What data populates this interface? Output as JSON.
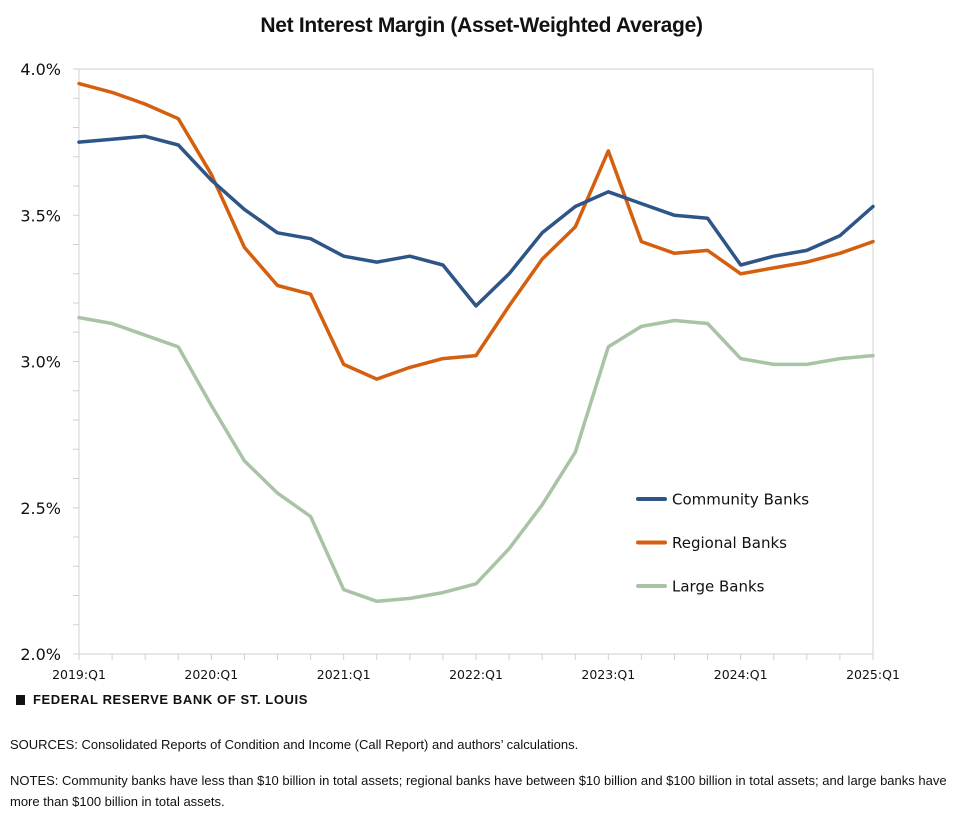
{
  "chart_data": {
    "type": "line",
    "title": "Net Interest Margin (Asset-Weighted Average)",
    "xlabel": "",
    "ylabel": "",
    "ylim": [
      2.0,
      4.0
    ],
    "yticks": [
      "2.0%",
      "2.5%",
      "3.0%",
      "3.5%",
      "4.0%"
    ],
    "ytick_values": [
      2.0,
      2.5,
      3.0,
      3.5,
      4.0
    ],
    "x": [
      "2019:Q1",
      "2019:Q2",
      "2019:Q3",
      "2019:Q4",
      "2020:Q1",
      "2020:Q2",
      "2020:Q3",
      "2020:Q4",
      "2021:Q1",
      "2021:Q2",
      "2021:Q3",
      "2021:Q4",
      "2022:Q1",
      "2022:Q2",
      "2022:Q3",
      "2022:Q4",
      "2023:Q1",
      "2023:Q2",
      "2023:Q3",
      "2023:Q4",
      "2024:Q1",
      "2024:Q2",
      "2024:Q3",
      "2024:Q4",
      "2025:Q1"
    ],
    "xtick_labels": [
      "2019:Q1",
      "2020:Q1",
      "2021:Q1",
      "2022:Q1",
      "2023:Q1",
      "2024:Q1",
      "2025:Q1"
    ],
    "grid": false,
    "legend_position": "center-right",
    "series": [
      {
        "name": "Community Banks",
        "color": "#2E5588",
        "values": [
          3.75,
          3.76,
          3.77,
          3.74,
          3.62,
          3.52,
          3.44,
          3.42,
          3.36,
          3.34,
          3.36,
          3.33,
          3.19,
          3.3,
          3.44,
          3.53,
          3.58,
          3.54,
          3.5,
          3.49,
          3.33,
          3.36,
          3.38,
          3.43,
          3.53
        ]
      },
      {
        "name": "Regional Banks",
        "color": "#D35F0F",
        "values": [
          3.95,
          3.92,
          3.88,
          3.83,
          3.64,
          3.39,
          3.26,
          3.23,
          2.99,
          2.94,
          2.98,
          3.01,
          3.02,
          3.19,
          3.35,
          3.46,
          3.72,
          3.41,
          3.37,
          3.38,
          3.3,
          3.32,
          3.34,
          3.37,
          3.41
        ]
      },
      {
        "name": "Large Banks",
        "color": "#A8C4A5",
        "values": [
          3.15,
          3.13,
          3.09,
          3.05,
          2.85,
          2.66,
          2.55,
          2.47,
          2.22,
          2.18,
          2.19,
          2.21,
          2.24,
          2.36,
          2.51,
          2.69,
          3.05,
          3.12,
          3.14,
          3.13,
          3.01,
          2.99,
          2.99,
          3.01,
          3.02
        ]
      }
    ]
  },
  "footer": {
    "brand": "FEDERAL RESERVE BANK OF ST. LOUIS",
    "sources": "SOURCES: Consolidated Reports of Condition and Income (Call Report) and authors’ calculations.",
    "notes": "NOTES: Community banks have less than $10 billion in total assets; regional banks have between $10 billion and $100 billion in total assets; and large banks have more than $100 billion in total assets."
  }
}
